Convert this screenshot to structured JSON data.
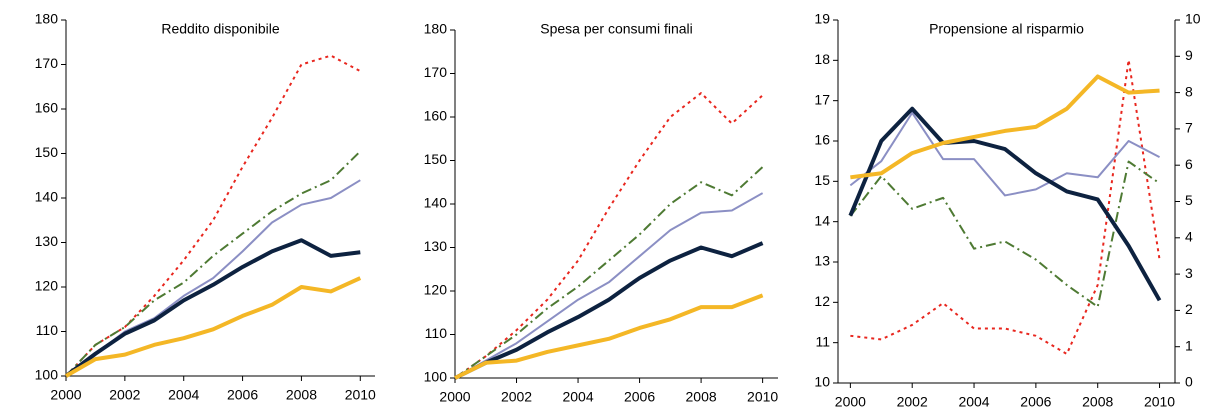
{
  "chart_data": [
    {
      "type": "line",
      "title": "Reddito disponibile",
      "x": [
        2000,
        2001,
        2002,
        2003,
        2004,
        2005,
        2006,
        2007,
        2008,
        2009,
        2010
      ],
      "xlim": [
        2000,
        2010.5
      ],
      "xticks": [
        2000,
        2002,
        2004,
        2006,
        2008,
        2010
      ],
      "ylim": [
        100,
        180
      ],
      "yticks": [
        100,
        110,
        120,
        130,
        140,
        150,
        160,
        170,
        180
      ],
      "series": [
        {
          "color": "#e8261e",
          "dash": "dotted",
          "width": 2,
          "values": [
            100,
            107,
            111,
            118,
            126,
            135,
            147,
            158,
            170,
            172,
            168.5
          ]
        },
        {
          "color": "#4e7a33",
          "dash": "dashdot",
          "width": 2,
          "values": [
            100,
            107,
            111,
            117,
            121,
            127,
            132,
            137,
            141,
            144,
            150.5
          ]
        },
        {
          "color": "#8b8fc4",
          "dash": "solid",
          "width": 2,
          "values": [
            100,
            105,
            110,
            113,
            118,
            122,
            128,
            134.5,
            138.5,
            140,
            144
          ]
        },
        {
          "color": "#0d2240",
          "dash": "solid",
          "width": 4,
          "values": [
            100,
            105,
            109.5,
            112.5,
            117,
            120.5,
            124.5,
            128,
            130.5,
            127,
            127.8
          ]
        },
        {
          "color": "#f4b726",
          "dash": "solid",
          "width": 4,
          "values": [
            100,
            103.8,
            104.8,
            107,
            108.5,
            110.5,
            113.5,
            116,
            120,
            119,
            122
          ]
        }
      ]
    },
    {
      "type": "line",
      "title": "Spesa per consumi finali",
      "x": [
        2000,
        2001,
        2002,
        2003,
        2004,
        2005,
        2006,
        2007,
        2008,
        2009,
        2010
      ],
      "xlim": [
        2000,
        2010.5
      ],
      "xticks": [
        2000,
        2002,
        2004,
        2006,
        2008,
        2010
      ],
      "ylim": [
        100,
        180
      ],
      "yticks": [
        100,
        110,
        120,
        130,
        140,
        150,
        160,
        170,
        180
      ],
      "series": [
        {
          "color": "#e8261e",
          "dash": "dotted",
          "width": 2,
          "values": [
            100,
            105,
            111,
            118,
            127,
            139,
            150,
            160,
            165.5,
            158.5,
            165
          ]
        },
        {
          "color": "#4e7a33",
          "dash": "dashdot",
          "width": 2,
          "values": [
            100,
            105,
            110,
            116,
            121,
            127,
            133,
            140,
            145,
            142,
            148.5
          ]
        },
        {
          "color": "#8b8fc4",
          "dash": "solid",
          "width": 2,
          "values": [
            100,
            104,
            108,
            113,
            118,
            122,
            128,
            134,
            138,
            138.5,
            142.5
          ]
        },
        {
          "color": "#0d2240",
          "dash": "solid",
          "width": 4,
          "values": [
            100,
            103.5,
            106.5,
            110.5,
            114,
            118,
            123,
            127,
            130,
            128,
            131
          ]
        },
        {
          "color": "#f4b726",
          "dash": "solid",
          "width": 4,
          "values": [
            100,
            103.5,
            104,
            106,
            107.5,
            109,
            111.5,
            113.5,
            116.3,
            116.3,
            119
          ]
        }
      ]
    },
    {
      "type": "line",
      "title": "Propensione al risparmio",
      "x": [
        2000,
        2001,
        2002,
        2003,
        2004,
        2005,
        2006,
        2007,
        2008,
        2009,
        2010
      ],
      "xlim": [
        1999.6,
        2010.5
      ],
      "xticks": [
        2000,
        2002,
        2004,
        2006,
        2008,
        2010
      ],
      "ylim": [
        10,
        19
      ],
      "yticks": [
        10,
        11,
        12,
        13,
        14,
        15,
        16,
        17,
        18,
        19
      ],
      "y2lim": [
        0,
        10
      ],
      "y2ticks": [
        0,
        1,
        2,
        3,
        4,
        5,
        6,
        7,
        8,
        9,
        10
      ],
      "series": [
        {
          "color": "#e8261e",
          "dash": "dotted",
          "width": 2,
          "axis": "y2",
          "values": [
            1.3,
            1.2,
            1.6,
            2.2,
            1.5,
            1.5,
            1.3,
            0.8,
            2.7,
            8.9,
            3.4
          ]
        },
        {
          "color": "#4e7a33",
          "dash": "dashdot",
          "width": 2,
          "axis": "y2",
          "values": [
            4.6,
            5.7,
            4.8,
            5.1,
            3.7,
            3.9,
            3.4,
            2.7,
            2.1,
            6.1,
            5.5
          ]
        },
        {
          "color": "#8b8fc4",
          "dash": "solid",
          "width": 2,
          "values": [
            14.9,
            15.5,
            16.7,
            15.55,
            15.55,
            14.65,
            14.8,
            15.2,
            15.1,
            16.0,
            15.6
          ]
        },
        {
          "color": "#0d2240",
          "dash": "solid",
          "width": 4,
          "values": [
            14.15,
            16.0,
            16.8,
            15.95,
            16.0,
            15.8,
            15.2,
            14.75,
            14.55,
            13.4,
            12.05
          ]
        },
        {
          "color": "#f4b726",
          "dash": "solid",
          "width": 4,
          "values": [
            15.1,
            15.2,
            15.7,
            15.95,
            16.1,
            16.25,
            16.35,
            16.8,
            17.6,
            17.2,
            17.25
          ]
        }
      ]
    }
  ]
}
